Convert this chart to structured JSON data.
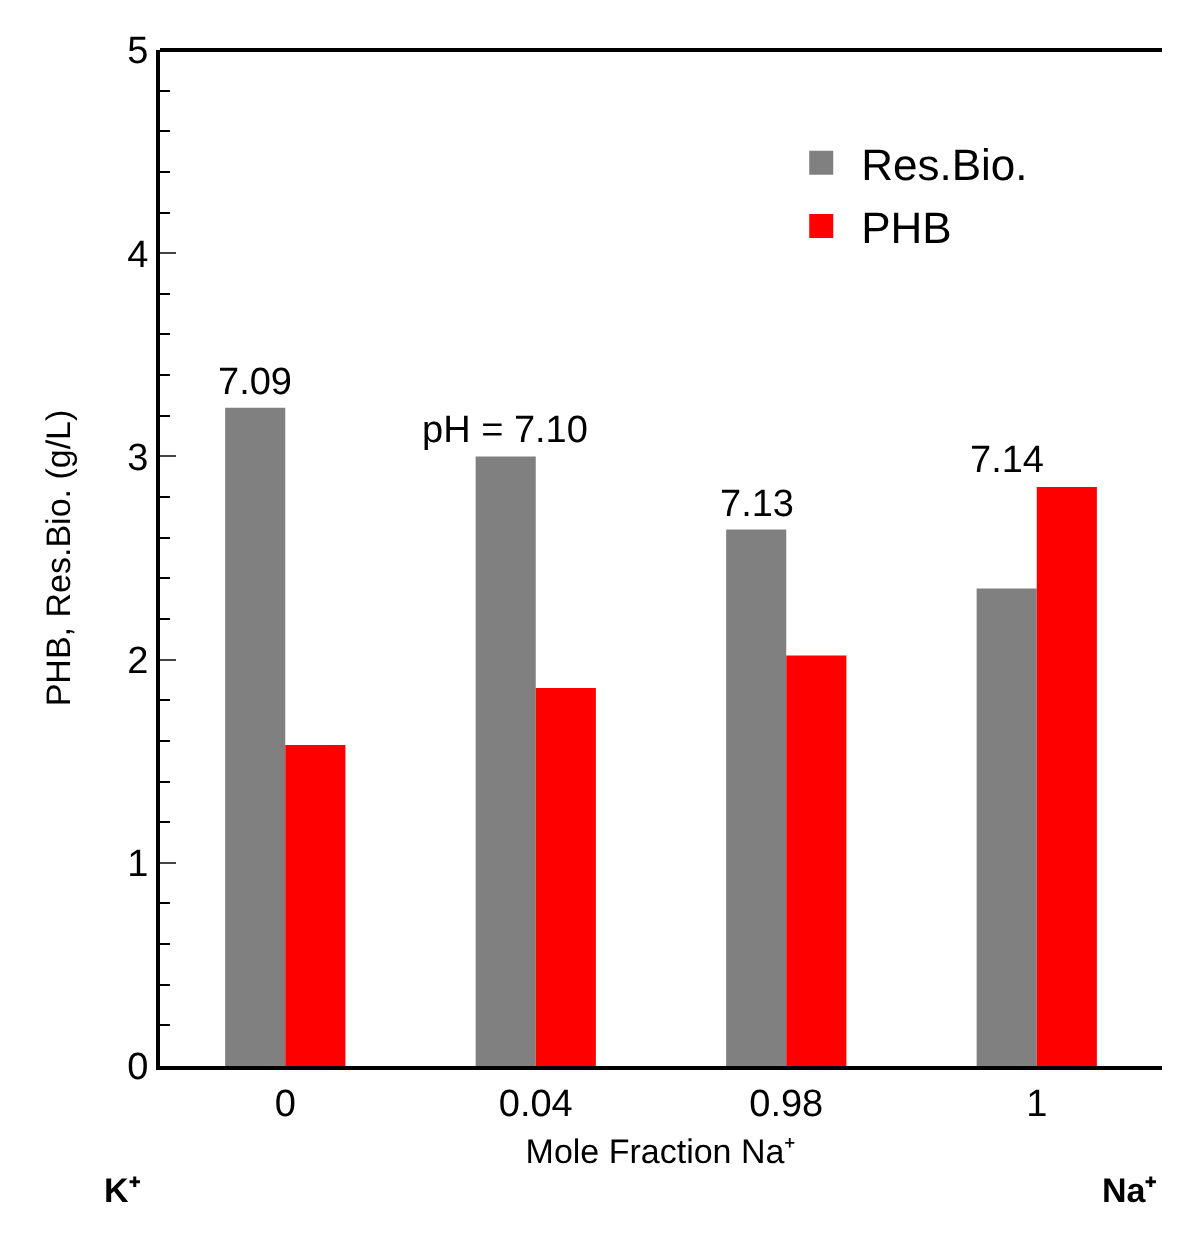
{
  "chart_data": {
    "type": "bar",
    "xlabel": "Mole Fraction Na⁺",
    "ylabel": "PHB, Res.Bio. (g/L)",
    "categories": [
      "0",
      "0.04",
      "0.98",
      "1"
    ],
    "series": [
      {
        "name": "Res.Bio.",
        "color": "#808080",
        "values": [
          3.24,
          3.0,
          2.64,
          2.35
        ]
      },
      {
        "name": "PHB",
        "color": "#ff0000",
        "values": [
          1.58,
          1.86,
          2.02,
          2.85
        ]
      }
    ],
    "ylim": [
      0,
      5
    ],
    "yticks": [
      0,
      1,
      2,
      3,
      4,
      5
    ],
    "grid": false,
    "legend": "top right",
    "annotations": [
      {
        "text": "7.09",
        "x": "0",
        "y": 3.24
      },
      {
        "text": "pH = 7.10",
        "x": "0.04",
        "y": 3.0
      },
      {
        "text": "7.13",
        "x": "0.98",
        "y": 2.64
      },
      {
        "text": "7.14",
        "x": "1",
        "y": 2.85
      },
      "K⁺",
      "Na⁺"
    ]
  }
}
